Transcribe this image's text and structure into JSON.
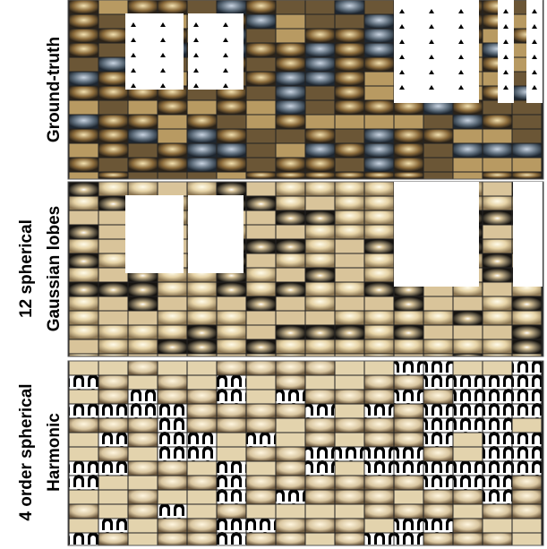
{
  "panels": [
    {
      "label_lines": [
        "Ground-truth"
      ]
    },
    {
      "label_lines": [
        "12 spherical",
        "Gaussian lobes"
      ]
    },
    {
      "label_lines": [
        "4 order spherical",
        "Harmonic"
      ]
    }
  ]
}
